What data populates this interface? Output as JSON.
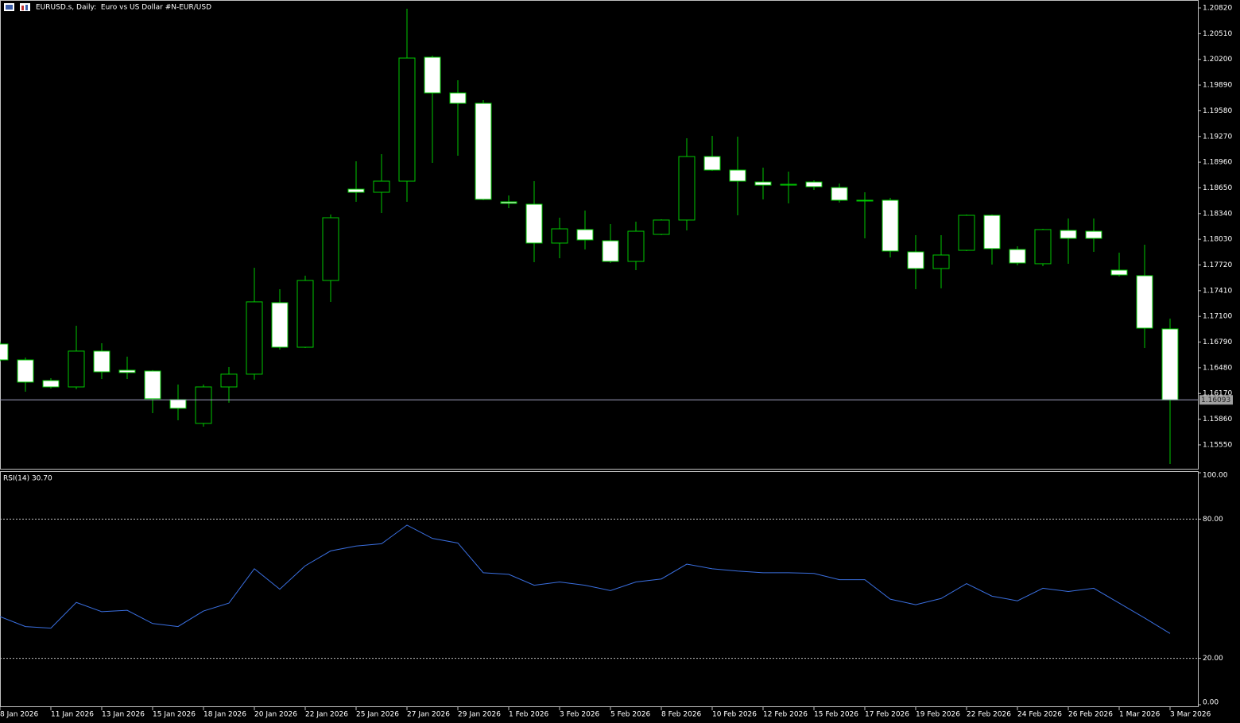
{
  "chart_data": [
    {
      "type": "candlestick",
      "title": "EURUSD.s, Daily:  Euro vs US Dollar #N-EUR/USD",
      "categories": [
        "8 Jan 2026",
        null,
        "11 Jan 2026",
        null,
        "13 Jan 2026",
        null,
        "15 Jan 2026",
        null,
        "18 Jan 2026",
        null,
        "20 Jan 2026",
        null,
        "22 Jan 2026",
        null,
        "25 Jan 2026",
        null,
        "27 Jan 2026",
        null,
        "29 Jan 2026",
        null,
        "1 Feb 2026",
        null,
        "3 Feb 2026",
        null,
        "5 Feb 2026",
        null,
        "8 Feb 2026",
        null,
        "10 Feb 2026",
        null,
        "12 Feb 2026",
        null,
        "15 Feb 2026",
        null,
        "17 Feb 2026",
        null,
        "19 Feb 2026",
        null,
        "22 Feb 2026",
        null,
        "24 Feb 2026",
        null,
        "26 Feb 2026",
        null,
        "1 Mar 2026",
        null,
        "3 Mar 2026"
      ],
      "open": [
        1.16767,
        1.16575,
        1.16326,
        1.16249,
        1.16681,
        1.16451,
        1.16441,
        1.16096,
        1.15809,
        1.16249,
        1.16403,
        1.17265,
        1.16728,
        1.17533,
        1.18635,
        1.18597,
        1.18731,
        1.20226,
        1.19795,
        1.1967,
        1.18482,
        1.18453,
        1.17984,
        1.18147,
        1.18012,
        1.17763,
        1.18089,
        1.18262,
        1.19028,
        1.18865,
        1.18721,
        1.18683,
        1.18721,
        1.18654,
        1.18501,
        1.18501,
        1.17878,
        1.17677,
        1.17897,
        1.18319,
        1.17907,
        1.17735,
        1.18137,
        1.18127,
        1.17658,
        1.17591,
        1.16949
      ],
      "high": [
        1.16796,
        1.16604,
        1.16355,
        1.16987,
        1.16776,
        1.16614,
        1.16451,
        1.16278,
        1.16278,
        1.16489,
        1.17687,
        1.17428,
        1.17591,
        1.18329,
        1.18971,
        1.19057,
        1.2081,
        1.20245,
        1.19948,
        1.19708,
        1.18559,
        1.18731,
        1.1829,
        1.18377,
        1.18214,
        1.18242,
        1.18271,
        1.19249,
        1.19277,
        1.19268,
        1.18894,
        1.18846,
        1.18741,
        1.18702,
        1.18597,
        1.1853,
        1.1808,
        1.1808,
        1.18329,
        1.18329,
        1.17945,
        1.18156,
        1.18281,
        1.18281,
        1.17869,
        1.17965,
        1.17073
      ],
      "low": [
        1.16556,
        1.16192,
        1.1623,
        1.16221,
        1.16345,
        1.16345,
        1.15933,
        1.15847,
        1.1577,
        1.16058,
        1.16336,
        1.167,
        1.16719,
        1.17275,
        1.18482,
        1.18348,
        1.18482,
        1.18952,
        1.19038,
        1.18501,
        1.18405,
        1.17754,
        1.17802,
        1.17907,
        1.17744,
        1.17658,
        1.1808,
        1.18137,
        1.18856,
        1.18319,
        1.18511,
        1.18463,
        1.18626,
        1.18472,
        1.18041,
        1.17811,
        1.17428,
        1.17438,
        1.17888,
        1.17725,
        1.17715,
        1.17706,
        1.17735,
        1.17878,
        1.17581,
        1.16719,
        1.1532
      ],
      "close": [
        1.16575,
        1.16307,
        1.16249,
        1.16681,
        1.16431,
        1.16422,
        1.16106,
        1.15991,
        1.16249,
        1.16403,
        1.17275,
        1.16728,
        1.17533,
        1.1829,
        1.18597,
        1.18731,
        1.20216,
        1.19795,
        1.1967,
        1.18511,
        1.18463,
        1.17984,
        1.18156,
        1.18022,
        1.17763,
        1.18127,
        1.18262,
        1.19028,
        1.18865,
        1.18731,
        1.18683,
        1.18693,
        1.18664,
        1.18501,
        1.18492,
        1.17888,
        1.17677,
        1.1784,
        1.18319,
        1.17917,
        1.17744,
        1.18147,
        1.18041,
        1.18041,
        1.176,
        1.16958,
        1.16093
      ],
      "up_color": "#00c800",
      "down_color": "#ffffff",
      "current_price": 1.16093,
      "ylim": [
        1.15262,
        1.20916
      ],
      "yticks": [
        {
          "value": 1.2082,
          "label": "1.20820"
        },
        {
          "value": 1.2051,
          "label": "1.20510"
        },
        {
          "value": 1.202,
          "label": "1.20200"
        },
        {
          "value": 1.1989,
          "label": "1.19890"
        },
        {
          "value": 1.1958,
          "label": "1.19580"
        },
        {
          "value": 1.1927,
          "label": "1.19270"
        },
        {
          "value": 1.1896,
          "label": "1.18960"
        },
        {
          "value": 1.1865,
          "label": "1.18650"
        },
        {
          "value": 1.1834,
          "label": "1.18340"
        },
        {
          "value": 1.1803,
          "label": "1.18030"
        },
        {
          "value": 1.1772,
          "label": "1.17720"
        },
        {
          "value": 1.1741,
          "label": "1.17410"
        },
        {
          "value": 1.171,
          "label": "1.17100"
        },
        {
          "value": 1.1679,
          "label": "1.16790"
        },
        {
          "value": 1.1648,
          "label": "1.16480"
        },
        {
          "value": 1.1617,
          "label": "1.16170"
        },
        {
          "value": 1.1586,
          "label": "1.15860"
        },
        {
          "value": 1.1555,
          "label": "1.15550"
        }
      ]
    },
    {
      "type": "line",
      "title": "RSI(14) 30.70",
      "color": "#3a6fe0",
      "values": [
        38.0,
        33.7,
        33.0,
        44.1,
        40.1,
        40.7,
        35.0,
        33.7,
        40.4,
        43.8,
        58.6,
        49.8,
        59.9,
        66.3,
        68.4,
        69.4,
        77.4,
        71.7,
        69.7,
        56.9,
        56.2,
        51.5,
        52.9,
        51.5,
        49.2,
        52.9,
        54.2,
        60.6,
        58.6,
        57.6,
        56.9,
        56.9,
        56.6,
        53.9,
        53.9,
        45.5,
        43.1,
        45.8,
        52.2,
        46.8,
        44.8,
        50.2,
        48.8,
        50.2,
        43.8,
        37.4,
        30.7
      ],
      "ylim": [
        0,
        100
      ],
      "yticks": [
        {
          "value": 100,
          "label": "100.00"
        },
        {
          "value": 80,
          "label": "80.00"
        },
        {
          "value": 20,
          "label": "20.00"
        },
        {
          "value": 0,
          "label": "0.00"
        }
      ]
    }
  ]
}
